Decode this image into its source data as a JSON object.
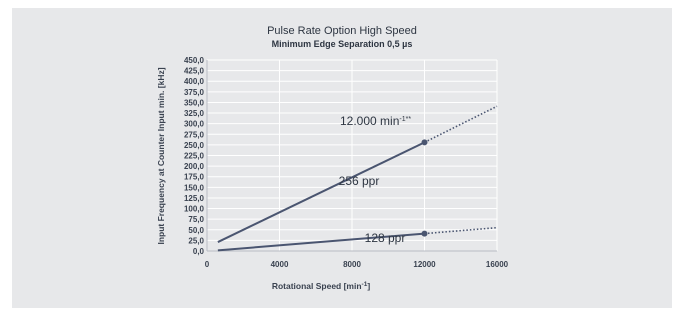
{
  "chart_data": {
    "type": "line",
    "title": "Pulse Rate Option High Speed",
    "subtitle": "Minimum Edge Separation 0,5 µs",
    "xlabel": "Rotational Speed [min",
    "xlabel_sup": "-1",
    "xlabel_tail": "]",
    "ylabel": "Input Frequency at Counter Input min. [kHz]",
    "xlim": [
      0,
      16000
    ],
    "ylim": [
      0,
      450
    ],
    "x_ticks": [
      0,
      4000,
      8000,
      12000,
      16000
    ],
    "x_tick_labels": [
      "0",
      "4000",
      "8000",
      "12000",
      "16000"
    ],
    "y_ticks": [
      0,
      25,
      50,
      75,
      100,
      125,
      150,
      175,
      200,
      225,
      250,
      275,
      300,
      325,
      350,
      375,
      400,
      425,
      450
    ],
    "y_tick_labels": [
      "0,0",
      "25,0",
      "50,0",
      "75,0",
      "100,0",
      "125,0",
      "150,0",
      "175,0",
      "200,0",
      "225,0",
      "250,0",
      "275,0",
      "300,0",
      "325,0",
      "350,0",
      "375,0",
      "400,0",
      "425,0",
      "450,0"
    ],
    "grid": true,
    "series": [
      {
        "name": "256 ppr",
        "solid": {
          "x": [
            600,
            12000
          ],
          "y": [
            21,
            256
          ]
        },
        "dotted": {
          "x": [
            12000,
            16000
          ],
          "y": [
            256,
            341
          ]
        },
        "marker": {
          "x": 12000,
          "y": 256
        }
      },
      {
        "name": "128 ppr",
        "solid": {
          "x": [
            600,
            12000
          ],
          "y": [
            1.5,
            41
          ]
        },
        "dotted": {
          "x": [
            12000,
            16000
          ],
          "y": [
            41,
            55
          ]
        },
        "marker": {
          "x": 12000,
          "y": 41
        }
      }
    ],
    "annotation": {
      "text": "12.000 min",
      "sup": "-1**"
    },
    "color": "#4a5570"
  }
}
